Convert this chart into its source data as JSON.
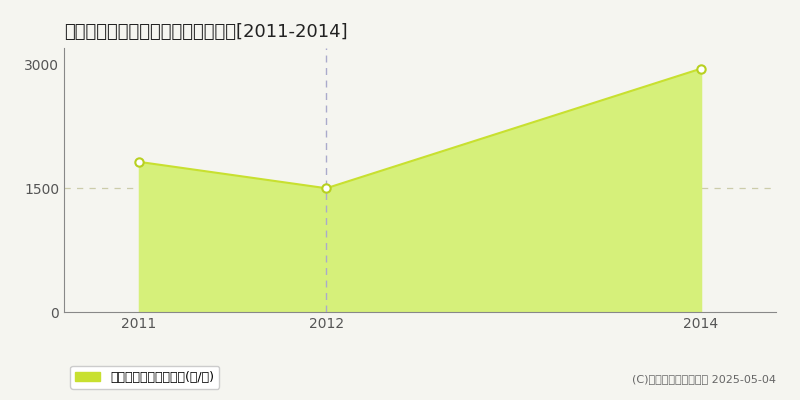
{
  "title": "南房総市和田町松田　農地価格推移[2011-2014]",
  "x_values": [
    2011,
    2012,
    2014
  ],
  "y_values": [
    1820,
    1500,
    2950
  ],
  "xlim": [
    2010.6,
    2014.4
  ],
  "ylim": [
    0,
    3200
  ],
  "yticks": [
    0,
    1500,
    3000
  ],
  "xticks": [
    2011,
    2012,
    2014
  ],
  "area_color": "#d6f07a",
  "line_color": "#c8e030",
  "marker_color": "#ffffff",
  "marker_edge_color": "#b8d020",
  "vline_x": 2012,
  "vline_color": "#aaaacc",
  "hline_y": 1500,
  "hline_color": "#ccccaa",
  "legend_label": "農地価格　平均坪単価(円/坪)",
  "legend_sq_color": "#c8e030",
  "copyright_text": "(C)土地価格ドットコム 2025-05-04",
  "background_color": "#f5f5f0",
  "title_fontsize": 13,
  "tick_fontsize": 10,
  "legend_fontsize": 9,
  "copyright_fontsize": 8
}
